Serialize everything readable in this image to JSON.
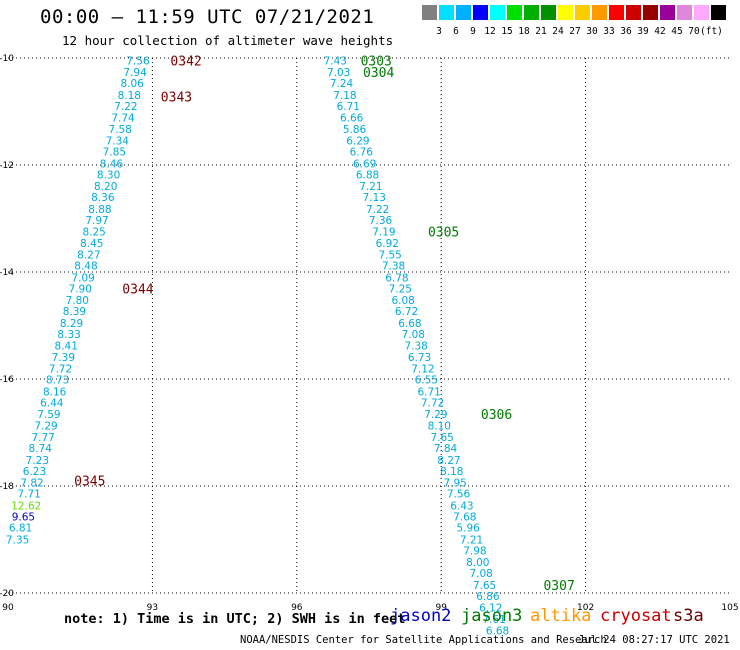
{
  "title": "00:00 – 11:59 UTC 07/21/2021",
  "subtitle": "12 hour collection of altimeter wave heights",
  "color_scale": {
    "colors": [
      "#808080",
      "#00e0ff",
      "#00b0ff",
      "#0000ff",
      "#00ffff",
      "#00e000",
      "#00b000",
      "#009000",
      "#ffff00",
      "#ffcc00",
      "#ff9900",
      "#ff0000",
      "#cc0000",
      "#990000",
      "#990099",
      "#dd88dd",
      "#ffaaff",
      "#000000"
    ],
    "labels": [
      "3",
      "6",
      "9",
      "12",
      "15",
      "18",
      "21",
      "24",
      "27",
      "30",
      "33",
      "36",
      "39",
      "42",
      "45",
      "70",
      "(ft)"
    ]
  },
  "note": "note:  1) Time is in UTC; 2) SWH is in feet",
  "satellites": [
    {
      "name": "jason2",
      "color": "#0000cc"
    },
    {
      "name": "jason3",
      "color": "#007a00"
    },
    {
      "name": "altika",
      "color": "#ff9900"
    },
    {
      "name": "cryosat",
      "color": "#cc0000"
    },
    {
      "name": "s3a",
      "color": "#660000"
    }
  ],
  "credit": "NOAA/NESDIS Center for Satellite Applications and Research",
  "generated": "Jul 24 08:27:17 UTC 2021",
  "chart_data": {
    "type": "scatter",
    "title": "00:00 – 11:59 UTC 07/21/2021",
    "xlim": [
      90,
      105
    ],
    "ylim": [
      -20,
      -10
    ],
    "x_ticks": [
      "90",
      "93",
      "96",
      "99",
      "102",
      "105"
    ],
    "y_ticks": [
      "-10",
      "-12",
      "-14",
      "-16",
      "-18",
      "-20"
    ],
    "grid": true,
    "colors": {
      "default": "#00aadd",
      "s3a": "#7a0000",
      "jason3": "#007a00",
      "green": "#66dd00",
      "blue": "#0000cc"
    },
    "tracks": [
      {
        "values": [
          "7.56",
          "7.94",
          "8.06",
          "8.18",
          "7.22",
          "7.74",
          "7.58",
          "7.34",
          "7.85",
          "8.46",
          "8.30",
          "8.20",
          "8.36",
          "8.88",
          "7.97",
          "8.25",
          "8.45",
          "8.27",
          "8.48",
          "7.09",
          "7.90",
          "7.80",
          "8.39",
          "8.29",
          "8.33",
          "8.41",
          "7.39",
          "7.72",
          "8.73",
          "8.16",
          "6.44",
          "7.59",
          "7.29",
          "7.77",
          "8.74",
          "7.23",
          "6.23",
          "7.82",
          "7.71",
          "12.62",
          "9.65",
          "6.81",
          "7.35"
        ],
        "x": [
          92.7,
          92.64,
          92.58,
          92.52,
          92.45,
          92.39,
          92.33,
          92.27,
          92.21,
          92.15,
          92.09,
          92.03,
          91.97,
          91.91,
          91.85,
          91.79,
          91.74,
          91.68,
          91.62,
          91.56,
          91.5,
          91.44,
          91.38,
          91.32,
          91.27,
          91.21,
          91.15,
          91.09,
          91.03,
          90.97,
          90.91,
          90.85,
          90.79,
          90.73,
          90.67,
          90.61,
          90.55,
          90.5,
          90.44,
          90.38,
          90.32,
          90.26,
          90.2
        ],
        "y": [
          -10.05,
          -10.26,
          -10.47,
          -10.69,
          -10.9,
          -11.11,
          -11.33,
          -11.54,
          -11.75,
          -11.97,
          -12.18,
          -12.39,
          -12.6,
          -12.82,
          -13.03,
          -13.24,
          -13.46,
          -13.67,
          -13.88,
          -14.1,
          -14.31,
          -14.52,
          -14.73,
          -14.95,
          -15.16,
          -15.37,
          -15.59,
          -15.8,
          -16.01,
          -16.23,
          -16.44,
          -16.65,
          -16.87,
          -17.08,
          -17.29,
          -17.51,
          -17.72,
          -17.93,
          -18.14,
          -18.36,
          -18.57,
          -18.78,
          -19.0
        ],
        "colors": {
          "39": "green",
          "40": "blue"
        },
        "times": [
          {
            "label": "0342",
            "x": 93.7,
            "y": -10.05,
            "c": "s3a"
          },
          {
            "label": "0343",
            "x": 93.5,
            "y": -10.72,
            "c": "s3a"
          },
          {
            "label": "0344",
            "x": 92.7,
            "y": -14.31,
            "c": "s3a"
          },
          {
            "label": "0345",
            "x": 91.7,
            "y": -17.9,
            "c": "s3a"
          }
        ]
      },
      {
        "values": [
          "7.43",
          "7.03",
          "7.24",
          "7.18",
          "6.71",
          "6.66",
          "5.86",
          "6.29",
          "6.76",
          "6.69",
          "6.88",
          "7.21",
          "7.13",
          "7.22",
          "7.36",
          "7.19",
          "6.92",
          "7.55",
          "7.38",
          "6.78",
          "7.25",
          "6.08",
          "6.72",
          "6.68",
          "7.08",
          "7.38",
          "6.73",
          "7.12",
          "6.55",
          "6.71",
          "7.72",
          "7.29",
          "8.10",
          "7.65",
          "7.84",
          "8.27",
          "8.18",
          "7.95",
          "7.56",
          "6.43",
          "7.68",
          "5.96",
          "7.21",
          "7.98",
          "8.00",
          "7.08",
          "7.65",
          "6.86",
          "6.12",
          "7.61",
          "6.68"
        ],
        "x": [
          96.8,
          96.87,
          96.93,
          97.0,
          97.07,
          97.14,
          97.2,
          97.27,
          97.34,
          97.41,
          97.47,
          97.54,
          97.61,
          97.68,
          97.74,
          97.81,
          97.88,
          97.94,
          98.01,
          98.08,
          98.15,
          98.21,
          98.28,
          98.35,
          98.42,
          98.48,
          98.55,
          98.62,
          98.69,
          98.75,
          98.82,
          98.89,
          98.96,
          99.02,
          99.09,
          99.16,
          99.22,
          99.29,
          99.36,
          99.43,
          99.49,
          99.56,
          99.63,
          99.7,
          99.76,
          99.83,
          99.9,
          99.97,
          100.03,
          100.1,
          100.17
        ],
        "y": [
          -10.05,
          -10.26,
          -10.47,
          -10.69,
          -10.9,
          -11.11,
          -11.33,
          -11.54,
          -11.75,
          -11.97,
          -12.18,
          -12.39,
          -12.6,
          -12.82,
          -13.03,
          -13.24,
          -13.46,
          -13.67,
          -13.88,
          -14.1,
          -14.31,
          -14.52,
          -14.73,
          -14.95,
          -15.16,
          -15.37,
          -15.59,
          -15.8,
          -16.01,
          -16.23,
          -16.44,
          -16.65,
          -16.87,
          -17.08,
          -17.29,
          -17.51,
          -17.72,
          -17.93,
          -18.14,
          -18.36,
          -18.57,
          -18.78,
          -19.0,
          -19.21,
          -19.42,
          -19.63,
          -19.85,
          -20.06,
          -20.27,
          -20.49,
          -20.7
        ],
        "colors": {},
        "times": [
          {
            "label": "0303",
            "x": 97.65,
            "y": -10.05,
            "c": "jason3"
          },
          {
            "label": "0304",
            "x": 97.7,
            "y": -10.26,
            "c": "jason3"
          },
          {
            "label": "0305",
            "x": 99.05,
            "y": -13.24,
            "c": "jason3"
          },
          {
            "label": "0306",
            "x": 100.15,
            "y": -16.65,
            "c": "jason3"
          },
          {
            "label": "0307",
            "x": 101.45,
            "y": -19.85,
            "c": "jason3"
          }
        ]
      }
    ]
  }
}
